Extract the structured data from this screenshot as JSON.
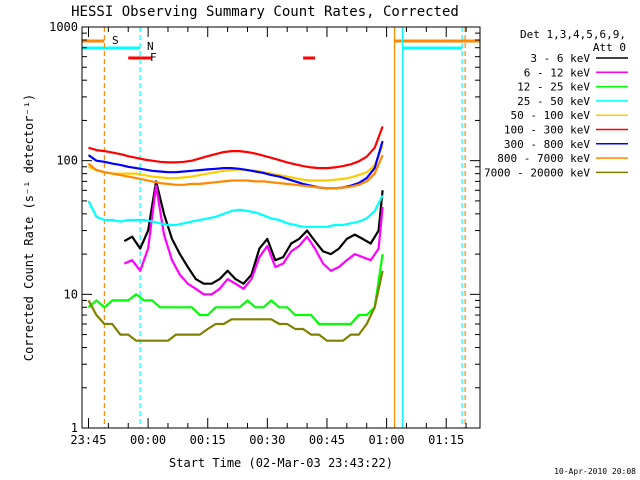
{
  "chart_data": {
    "type": "line",
    "title": "HESSI Observing Summary Count Rates, Corrected",
    "xlabel": "Start Time (02-Mar-03 23:43:22)",
    "ylabel": "Corrected Count Rate (s⁻¹ detector⁻¹)",
    "y_scale": "log",
    "ylim": [
      1,
      1000
    ],
    "xlim_minutes_after_2345": [
      -1.63,
      98.5
    ],
    "x_tick_labels": [
      "23:45",
      "00:00",
      "00:15",
      "00:30",
      "00:45",
      "01:00",
      "01:15"
    ],
    "x_tick_minutes_after_2345": [
      0,
      15,
      30,
      45,
      60,
      75,
      90
    ],
    "y_tick_labels": [
      "1",
      "10",
      "100",
      "1000"
    ],
    "y_tick_values": [
      1,
      10,
      100,
      1000
    ],
    "legend": {
      "header": [
        "Det 1,3,4,5,6,9,",
        "Att 0"
      ],
      "placement": "right, outside plot"
    },
    "series": [
      {
        "name": "3 - 6 keV",
        "color": "#000000",
        "x": [
          9,
          11,
          13,
          15,
          17,
          19,
          21,
          23,
          25,
          27,
          29,
          31,
          33,
          35,
          37,
          39,
          41,
          43,
          45,
          47,
          49,
          51,
          53,
          55,
          57,
          59,
          61,
          63,
          65,
          67,
          69,
          71,
          73,
          74
        ],
        "y": [
          25,
          27,
          22,
          30,
          70,
          40,
          26,
          20,
          16,
          13,
          12,
          12,
          13,
          15,
          13,
          12,
          14,
          22,
          26,
          18,
          19,
          24,
          26,
          30,
          25,
          21,
          20,
          22,
          26,
          28,
          26,
          24,
          30,
          60
        ]
      },
      {
        "name": "6 - 12 keV",
        "color": "#ff00ff",
        "x": [
          9,
          11,
          13,
          15,
          17,
          19,
          21,
          23,
          25,
          27,
          29,
          31,
          33,
          35,
          37,
          39,
          41,
          43,
          45,
          47,
          49,
          51,
          53,
          55,
          57,
          59,
          61,
          63,
          65,
          67,
          69,
          71,
          73,
          74
        ],
        "y": [
          17,
          18,
          15,
          22,
          65,
          28,
          18,
          14,
          12,
          11,
          10,
          10,
          11,
          13,
          12,
          11,
          13,
          19,
          23,
          16,
          17,
          21,
          23,
          27,
          22,
          17,
          15,
          16,
          18,
          20,
          19,
          18,
          22,
          45
        ]
      },
      {
        "name": "12 - 25 keV",
        "color": "#00ff00",
        "x": [
          0,
          2,
          4,
          6,
          8,
          10,
          12,
          14,
          16,
          18,
          20,
          22,
          24,
          26,
          28,
          30,
          32,
          34,
          36,
          38,
          40,
          42,
          44,
          46,
          48,
          50,
          52,
          54,
          56,
          58,
          60,
          62,
          64,
          66,
          68,
          70,
          72,
          74
        ],
        "y": [
          8,
          9,
          8,
          9,
          9,
          9,
          10,
          9,
          9,
          8,
          8,
          8,
          8,
          8,
          7,
          7,
          8,
          8,
          8,
          8,
          9,
          8,
          8,
          9,
          8,
          8,
          7,
          7,
          7,
          6,
          6,
          6,
          6,
          6,
          7,
          7,
          8,
          20
        ]
      },
      {
        "name": "25 - 50 keV",
        "color": "#00ffff",
        "x": [
          0,
          2,
          4,
          6,
          8,
          10,
          12,
          14,
          16,
          18,
          20,
          22,
          24,
          26,
          28,
          30,
          32,
          34,
          36,
          38,
          40,
          42,
          44,
          46,
          48,
          50,
          52,
          54,
          56,
          58,
          60,
          62,
          64,
          66,
          68,
          70,
          72,
          74
        ],
        "y": [
          50,
          38,
          36,
          36,
          35,
          36,
          36,
          36,
          35,
          34,
          33,
          33,
          34,
          35,
          36,
          37,
          38,
          40,
          42,
          43,
          42,
          41,
          39,
          37,
          36,
          34,
          33,
          32,
          32,
          32,
          32,
          33,
          33,
          34,
          35,
          37,
          42,
          55
        ]
      },
      {
        "name": "50 - 100 keV",
        "color": "#ffcc00",
        "x": [
          0,
          2,
          4,
          6,
          8,
          10,
          12,
          14,
          16,
          18,
          20,
          22,
          24,
          26,
          28,
          30,
          32,
          34,
          36,
          38,
          40,
          42,
          44,
          46,
          48,
          50,
          52,
          54,
          56,
          58,
          60,
          62,
          64,
          66,
          68,
          70,
          72,
          74
        ],
        "y": [
          90,
          85,
          82,
          80,
          80,
          80,
          80,
          78,
          76,
          75,
          74,
          74,
          75,
          76,
          78,
          80,
          82,
          84,
          85,
          86,
          85,
          84,
          82,
          80,
          78,
          76,
          74,
          72,
          71,
          71,
          71,
          72,
          73,
          75,
          78,
          82,
          92,
          130
        ]
      },
      {
        "name": "100 - 300 keV",
        "color": "#ff0000",
        "x": [
          0,
          2,
          4,
          6,
          8,
          10,
          12,
          14,
          16,
          18,
          20,
          22,
          24,
          26,
          28,
          30,
          32,
          34,
          36,
          38,
          40,
          42,
          44,
          46,
          48,
          50,
          52,
          54,
          56,
          58,
          60,
          62,
          64,
          66,
          68,
          70,
          72,
          74
        ],
        "y": [
          125,
          120,
          118,
          115,
          112,
          108,
          105,
          102,
          100,
          98,
          97,
          97,
          98,
          100,
          104,
          108,
          112,
          116,
          118,
          118,
          116,
          113,
          109,
          105,
          101,
          97,
          94,
          91,
          89,
          88,
          88,
          89,
          91,
          94,
          99,
          107,
          125,
          180
        ]
      },
      {
        "name": "300 - 800 keV",
        "color": "#0000ff",
        "x": [
          0,
          2,
          4,
          6,
          8,
          10,
          12,
          14,
          16,
          18,
          20,
          22,
          24,
          26,
          28,
          30,
          32,
          34,
          36,
          38,
          40,
          42,
          44,
          46,
          48,
          50,
          52,
          54,
          56,
          58,
          60,
          62,
          64,
          66,
          68,
          70,
          72,
          74
        ],
        "y": [
          110,
          100,
          98,
          95,
          93,
          90,
          88,
          86,
          84,
          83,
          82,
          82,
          83,
          84,
          85,
          86,
          87,
          88,
          88,
          87,
          85,
          83,
          81,
          78,
          76,
          73,
          70,
          67,
          65,
          63,
          62,
          62,
          63,
          65,
          68,
          74,
          88,
          140
        ]
      },
      {
        "name": "800 - 7000 keV",
        "color": "#ff8800",
        "x": [
          0,
          2,
          4,
          6,
          8,
          10,
          12,
          14,
          16,
          18,
          20,
          22,
          24,
          26,
          28,
          30,
          32,
          34,
          36,
          38,
          40,
          42,
          44,
          46,
          48,
          50,
          52,
          54,
          56,
          58,
          60,
          62,
          64,
          66,
          68,
          70,
          72,
          74
        ],
        "y": [
          95,
          85,
          82,
          80,
          78,
          76,
          74,
          72,
          70,
          68,
          67,
          66,
          66,
          67,
          67,
          68,
          69,
          70,
          71,
          71,
          71,
          70,
          70,
          69,
          68,
          67,
          66,
          65,
          64,
          63,
          62,
          62,
          63,
          64,
          66,
          70,
          80,
          110
        ]
      },
      {
        "name": "7000 - 20000 keV",
        "color": "#808000",
        "x": [
          0,
          2,
          4,
          6,
          8,
          10,
          12,
          14,
          16,
          18,
          20,
          22,
          24,
          26,
          28,
          30,
          32,
          34,
          36,
          38,
          40,
          42,
          44,
          46,
          48,
          50,
          52,
          54,
          56,
          58,
          60,
          62,
          64,
          66,
          68,
          70,
          72,
          74
        ],
        "y": [
          9,
          7,
          6,
          6,
          5,
          5,
          4.5,
          4.5,
          4.5,
          4.5,
          4.5,
          5,
          5,
          5,
          5,
          5.5,
          6,
          6,
          6.5,
          6.5,
          6.5,
          6.5,
          6.5,
          6.5,
          6,
          6,
          5.5,
          5.5,
          5,
          5,
          4.5,
          4.5,
          4.5,
          5,
          5,
          6,
          8,
          15
        ]
      }
    ],
    "bars": [
      {
        "label": "S",
        "color": "#ff8800",
        "segments": [
          [
            -1.63,
            4
          ],
          [
            77,
            98.5
          ]
        ]
      },
      {
        "label": "N",
        "color": "#00ffff",
        "segments": [
          [
            -1.63,
            13
          ],
          [
            79,
            94
          ]
        ]
      },
      {
        "label": "F",
        "color": "#ff0000",
        "segments": [
          [
            10,
            16
          ],
          [
            54,
            57
          ]
        ]
      }
    ],
    "vertical_markers": [
      {
        "x": 4,
        "color": "#ff8800",
        "style": "dashed"
      },
      {
        "x": 13,
        "color": "#00ffff",
        "style": "dashed"
      },
      {
        "x": 77,
        "color": "#ff8800",
        "style": "solid"
      },
      {
        "x": 79,
        "color": "#00ffff",
        "style": "solid"
      },
      {
        "x": 94,
        "color": "#00ffff",
        "style": "dashed"
      },
      {
        "x": 94,
        "color": "#ff8800",
        "style": "dashed"
      }
    ]
  },
  "timestamp": "10-Apr-2010 20:08"
}
